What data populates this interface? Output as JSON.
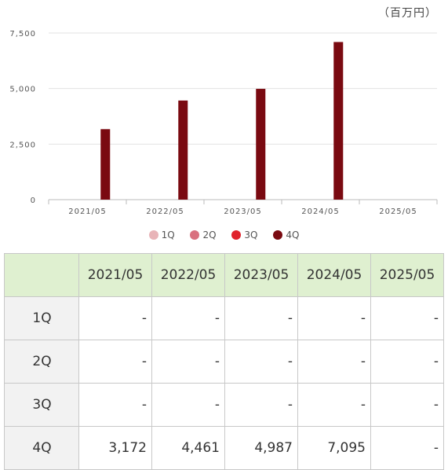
{
  "unit_label": "（百万円）",
  "chart_data": {
    "type": "bar",
    "categories": [
      "2021/05",
      "2022/05",
      "2023/05",
      "2024/05",
      "2025/05"
    ],
    "series": [
      {
        "name": "1Q",
        "color": "#e8b4b8",
        "values": [
          null,
          null,
          null,
          null,
          null
        ]
      },
      {
        "name": "2Q",
        "color": "#d9717f",
        "values": [
          null,
          null,
          null,
          null,
          null
        ]
      },
      {
        "name": "3Q",
        "color": "#e0222c",
        "values": [
          null,
          null,
          null,
          null,
          null
        ]
      },
      {
        "name": "4Q",
        "color": "#7a0a11",
        "values": [
          3172,
          4461,
          4987,
          7095,
          null
        ]
      }
    ],
    "ylim": [
      0,
      7500
    ],
    "yticks": [
      "0",
      "2,500",
      "5,000",
      "7,500"
    ],
    "ytick_values": [
      0,
      2500,
      5000,
      7500
    ],
    "grid": true,
    "legend_position": "bottom"
  },
  "table": {
    "headers": [
      "",
      "2021/05",
      "2022/05",
      "2023/05",
      "2024/05",
      "2025/05"
    ],
    "rows": [
      {
        "label": "1Q",
        "cells": [
          "-",
          "-",
          "-",
          "-",
          "-"
        ]
      },
      {
        "label": "2Q",
        "cells": [
          "-",
          "-",
          "-",
          "-",
          "-"
        ]
      },
      {
        "label": "3Q",
        "cells": [
          "-",
          "-",
          "-",
          "-",
          "-"
        ]
      },
      {
        "label": "4Q",
        "cells": [
          "3,172",
          "4,461",
          "4,987",
          "7,095",
          "-"
        ]
      }
    ]
  }
}
